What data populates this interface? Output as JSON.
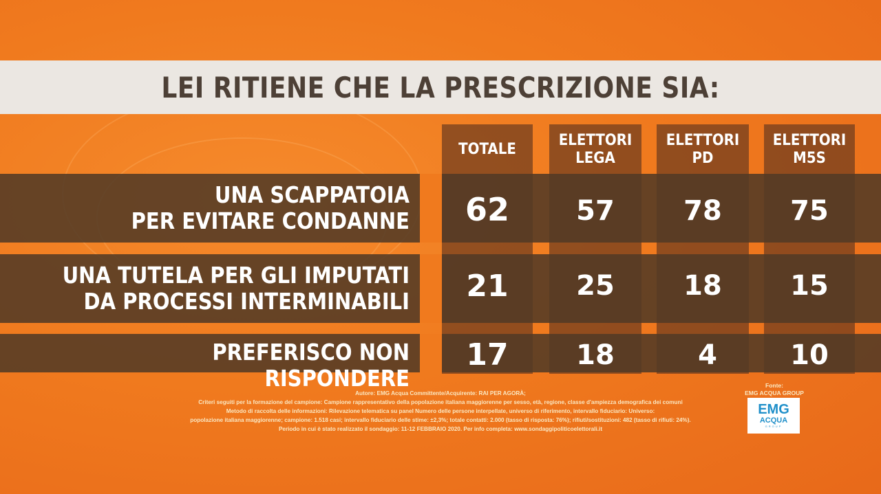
{
  "title": "LEI RITIENE CHE LA PRESCRIZIONE SIA:",
  "chart_data": {
    "type": "table",
    "columns": [
      {
        "line1": "TOTALE",
        "line2": ""
      },
      {
        "line1": "ELETTORI",
        "line2": "LEGA"
      },
      {
        "line1": "ELETTORI",
        "line2": "PD"
      },
      {
        "line1": "ELETTORI",
        "line2": "M5S"
      }
    ],
    "rows": [
      {
        "label_line1": "UNA SCAPPATOIA",
        "label_line2": "PER EVITARE CONDANNE",
        "values": [
          "62",
          "57",
          "78",
          "75"
        ]
      },
      {
        "label_line1": "UNA TUTELA PER GLI IMPUTATI",
        "label_line2": "DA PROCESSI INTERMINABILI",
        "values": [
          "21",
          "25",
          "18",
          "15"
        ]
      },
      {
        "label_line1": "PREFERISCO NON RISPONDERE",
        "label_line2": "",
        "values": [
          "17",
          "18",
          "4",
          "10"
        ]
      }
    ]
  },
  "footer": {
    "line1": "Autore: EMG Acqua Committente/Acquirente: RAI PER AGORÀ;",
    "line2": "Criteri seguiti per la formazione del campione: Campione rappresentativo della popolazione italiana maggiorenne per sesso, età, regione, classe d'ampiezza demografica dei comuni",
    "line3": "Metodo di raccolta delle informazioni: Rilevazione telematica su panel Numero delle persone interpellate, universo di riferimento, intervallo fiduciario: Universo:",
    "line4": "popolazione italiana maggiorenne; campione: 1.518 casi; intervallo fiduciario delle stime: ±2,3%; totale contatti: 2.000 (tasso di risposta: 76%); rifiuti/sostituzioni: 482 (tasso di rifiuti: 24%).",
    "line5": "Periodo in cui è stato realizzato il sondaggio: 11-12 FEBBRAIO 2020. Per info completa: www.sondaggipoliticoelettorali.it"
  },
  "source": {
    "line1": "Fonte:",
    "line2": "EMG ACQUA GROUP"
  },
  "logo": {
    "line1": "EMG",
    "line2": "ACQUA",
    "line3": "GROUP"
  },
  "colors": {
    "background": "#f07a1e",
    "title_band": "#ebe7e2",
    "title_text": "#4d4036",
    "row_band": "#523a26",
    "column_band": "#6e3c1e",
    "logo_blue": "#1f8fc9"
  }
}
